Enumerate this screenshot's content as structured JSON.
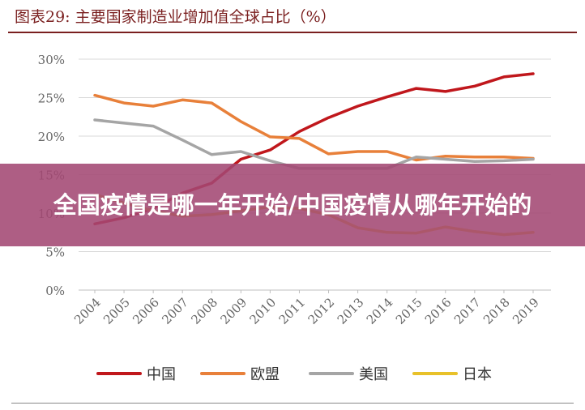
{
  "header": {
    "figure_title": "图表29:  主要国家制造业增加值全球占比（%）"
  },
  "banner": {
    "text": "全国疫情是哪一年开始/中国疫情从哪年开始的"
  },
  "chart_data": {
    "type": "line",
    "title": "",
    "xlabel": "",
    "ylabel": "",
    "categories": [
      "2004",
      "2005",
      "2006",
      "2007",
      "2008",
      "2009",
      "2010",
      "2011",
      "2012",
      "2013",
      "2014",
      "2015",
      "2016",
      "2017",
      "2018",
      "2019"
    ],
    "y_ticks": [
      "0%",
      "5%",
      "10%",
      "15%",
      "20%",
      "25%",
      "30%"
    ],
    "ylim": [
      0,
      30
    ],
    "grid": true,
    "legend_position": "bottom",
    "series": [
      {
        "name": "中国",
        "color": "#c0171c",
        "values": [
          8.6,
          9.4,
          10.6,
          12.6,
          13.9,
          17.0,
          18.2,
          20.6,
          22.4,
          23.9,
          25.1,
          26.2,
          25.8,
          26.5,
          27.7,
          28.1
        ]
      },
      {
        "name": "欧盟",
        "color": "#e8803a",
        "values": [
          25.3,
          24.3,
          23.9,
          24.7,
          24.3,
          21.9,
          19.9,
          19.7,
          17.7,
          18.0,
          18.0,
          16.9,
          17.4,
          17.3,
          17.3,
          17.1
        ]
      },
      {
        "name": "美国",
        "color": "#a5a5a5",
        "values": [
          22.1,
          21.7,
          21.3,
          19.5,
          17.6,
          18.0,
          16.8,
          15.8,
          15.8,
          15.8,
          15.8,
          17.3,
          17.0,
          16.7,
          16.8,
          17.0
        ]
      },
      {
        "name": "日本",
        "color": "#e8c12a",
        "values": [
          12.4,
          11.3,
          10.3,
          9.6,
          9.8,
          10.3,
          10.8,
          10.6,
          9.8,
          8.1,
          7.5,
          7.4,
          8.2,
          7.6,
          7.2,
          7.5
        ]
      }
    ]
  }
}
